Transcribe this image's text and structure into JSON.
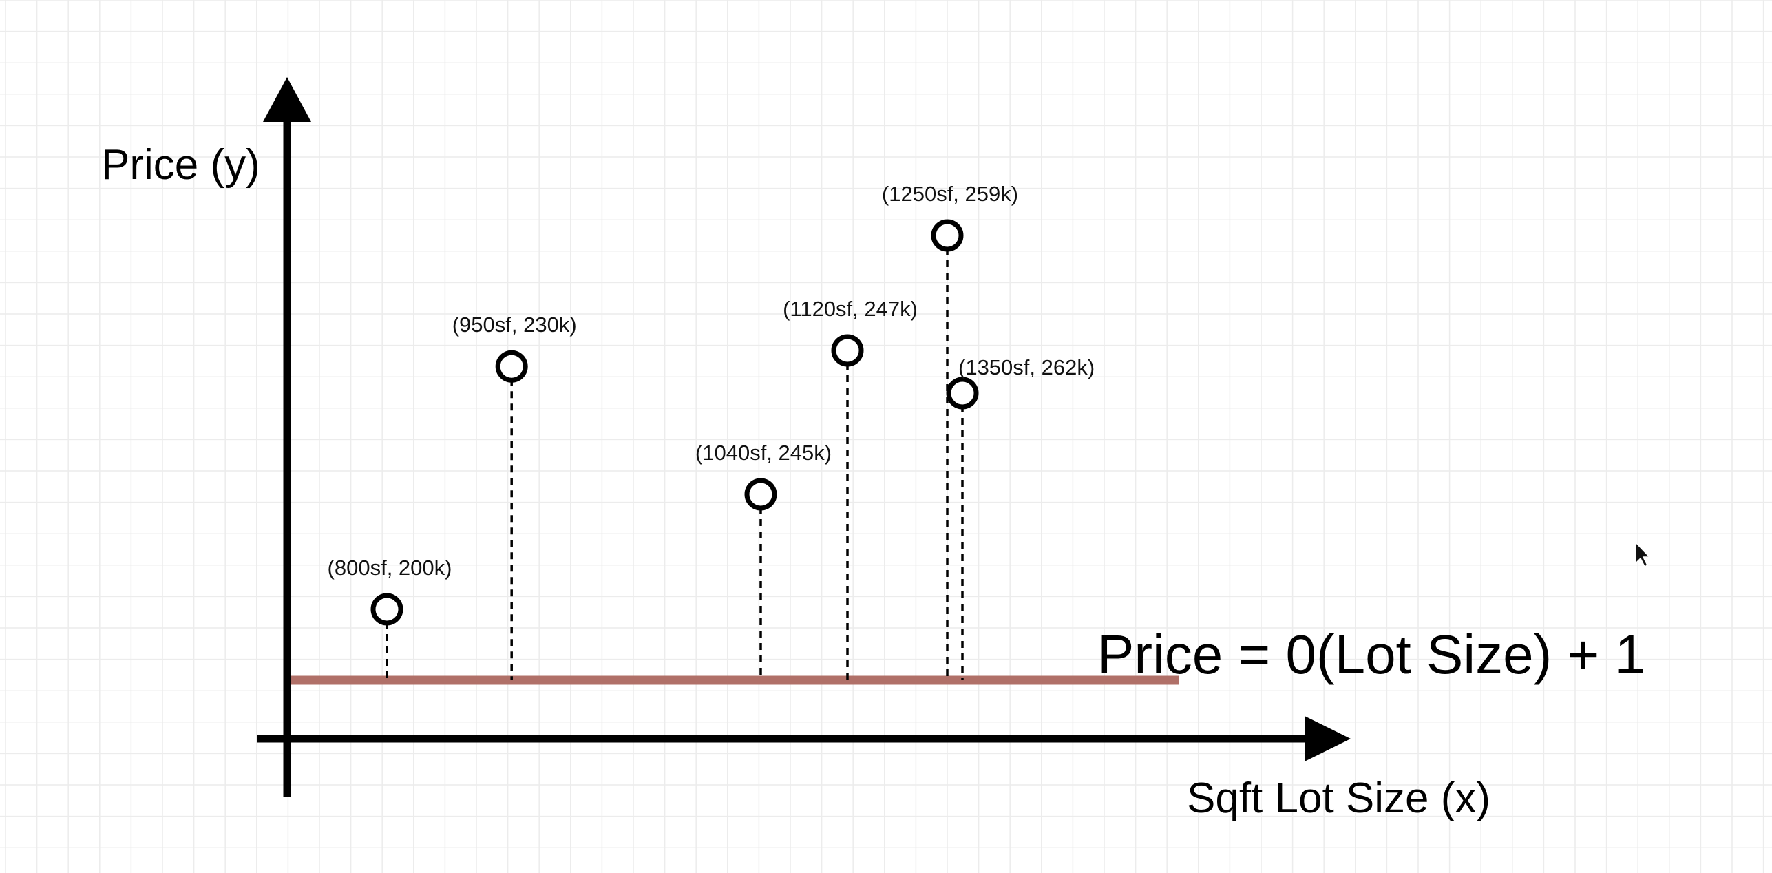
{
  "diagram": {
    "y_axis_label": "Price (y)",
    "x_axis_label": "Sqft Lot Size (x)",
    "equation": "Price = 0(Lot Size) + 1",
    "regression_line_color": "#b07068",
    "axis_color": "#000000",
    "grid_color": "#ececec",
    "cursor_icon": "mouse-pointer-icon",
    "points": [
      {
        "label": "(800sf,  200k)",
        "sqft": 800,
        "price_k": 200
      },
      {
        "label": "(950sf,  230k)",
        "sqft": 950,
        "price_k": 230
      },
      {
        "label": "(1040sf,  245k)",
        "sqft": 1040,
        "price_k": 245
      },
      {
        "label": "(1120sf,  247k)",
        "sqft": 1120,
        "price_k": 247
      },
      {
        "label": "(1250sf,  259k)",
        "sqft": 1250,
        "price_k": 259
      },
      {
        "label": "(1350sf,  262k)",
        "sqft": 1350,
        "price_k": 262
      }
    ]
  }
}
